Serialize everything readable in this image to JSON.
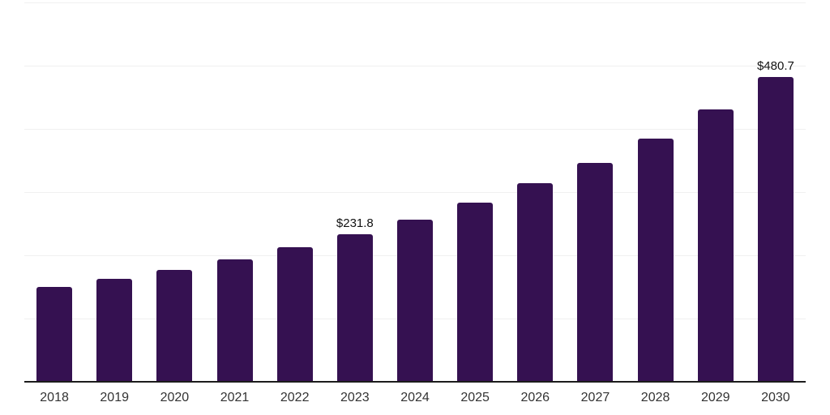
{
  "page": {
    "background_color": "#ffffff"
  },
  "chart_data": {
    "type": "bar",
    "title": "",
    "xlabel": "",
    "ylabel": "",
    "categories": [
      "2018",
      "2019",
      "2020",
      "2021",
      "2022",
      "2023",
      "2024",
      "2025",
      "2026",
      "2027",
      "2028",
      "2029",
      "2030"
    ],
    "values": [
      149.3,
      162.1,
      175.7,
      192.8,
      211.1,
      231.8,
      255.0,
      281.5,
      312.5,
      345.5,
      383.9,
      429.0,
      480.7
    ],
    "data_labels": [
      {
        "category": "2023",
        "text": "$231.8"
      },
      {
        "category": "2030",
        "text": "$480.7"
      }
    ],
    "ylim": [
      0,
      600
    ],
    "grid_step": 100,
    "grid": true,
    "legend": "none",
    "colors": {
      "bar": "#351151",
      "grid_line": "#f0f0f0",
      "axis_line": "#1c1c1c",
      "tick_label": "#333333",
      "data_label": "#121212"
    }
  }
}
